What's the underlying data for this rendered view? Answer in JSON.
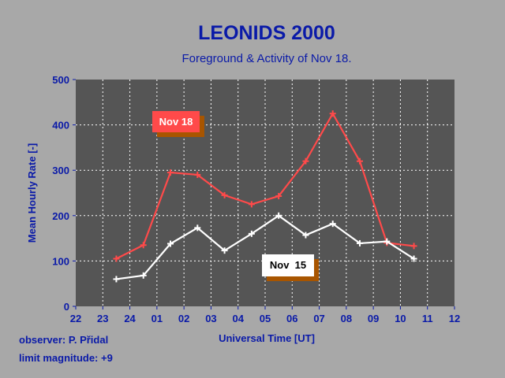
{
  "chart_data": {
    "type": "line",
    "title": "LEONIDS 2000",
    "subtitle": "Foreground & Activity of Nov 18.",
    "xlabel": "Universal Time [UT]",
    "ylabel": "Mean Hourly Rate [-]",
    "ylim": [
      0,
      500
    ],
    "yticks": [
      "0",
      "100",
      "200",
      "300",
      "400",
      "500"
    ],
    "xtick_labels": [
      "22",
      "23",
      "24",
      "01",
      "02",
      "03",
      "04",
      "05",
      "06",
      "07",
      "08",
      "09",
      "10",
      "11",
      "12"
    ],
    "grid": true,
    "x_unit_note": "x values are hours after 22 UT",
    "series": [
      {
        "name": "Nov 18",
        "color": "#ff4a4a",
        "x": [
          1.5,
          2.5,
          3.5,
          4.5,
          5.5,
          6.5,
          7.5,
          8.5,
          9.5,
          10.5,
          11.5,
          12.5
        ],
        "values": [
          105,
          135,
          295,
          290,
          245,
          225,
          243,
          320,
          425,
          320,
          140,
          133
        ]
      },
      {
        "name": "Nov  15",
        "color": "#ffffff",
        "x": [
          1.5,
          2.5,
          3.5,
          4.5,
          5.5,
          6.5,
          7.5,
          8.5,
          9.5,
          10.5,
          11.5,
          12.5
        ],
        "values": [
          60,
          68,
          138,
          173,
          123,
          160,
          200,
          157,
          182,
          139,
          143,
          105
        ]
      }
    ]
  },
  "notes": {
    "observer": "observer: P. Přidal",
    "limit_magnitude": "limit magnitude: +9"
  },
  "colors": {
    "background": "#a8a8a8",
    "plot_area": "#555555",
    "text": "#0a1aa8",
    "legend_box_red": "#ff4a4a",
    "legend_shadow": "#a85500"
  }
}
